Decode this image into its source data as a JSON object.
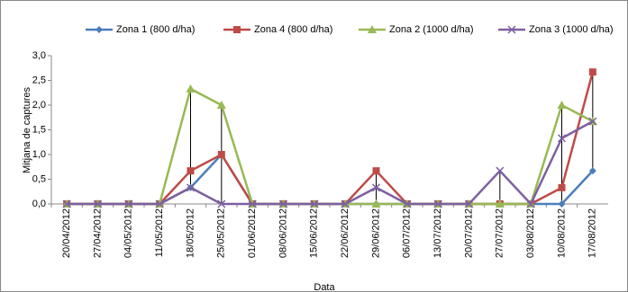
{
  "chart_data": {
    "type": "line",
    "x_label": "Data",
    "y_label": "Mitjana de captures",
    "categories": [
      "20/04/2012",
      "27/04/2012",
      "04/05/2012",
      "11/05/2012",
      "18/05/2012",
      "25/05/2012",
      "01/06/2012",
      "08/06/2012",
      "15/06/2012",
      "22/06/2012",
      "29/06/2012",
      "06/07/2012",
      "13/07/2012",
      "20/07/2012",
      "27/07/2012",
      "03/08/2012",
      "10/08/2012",
      "17/08/2012"
    ],
    "series": [
      {
        "name": "Zona 1 (800 d/ha)",
        "color": "#4a7ebb",
        "marker": "diamond",
        "values": [
          0,
          0,
          0,
          0,
          0.33,
          1.0,
          0,
          0,
          0,
          0,
          0,
          0,
          0,
          0,
          0,
          0,
          0,
          0.67
        ]
      },
      {
        "name": "Zona 4 (800 d/ha)",
        "color": "#be4b48",
        "marker": "square",
        "values": [
          0,
          0,
          0,
          0,
          0.67,
          1.0,
          0,
          0,
          0,
          0,
          0.67,
          0,
          0,
          0,
          0,
          0,
          0.33,
          2.67
        ]
      },
      {
        "name": "Zona 2 (1000 d/ha)",
        "color": "#98b954",
        "marker": "triangle",
        "values": [
          0,
          0,
          0,
          0,
          2.33,
          2.0,
          0,
          0,
          0,
          0,
          0,
          0,
          0,
          0,
          0,
          0,
          2.0,
          1.67
        ]
      },
      {
        "name": "Zona 3 (1000 d/ha)",
        "color": "#7d60a0",
        "marker": "x",
        "values": [
          0,
          0,
          0,
          0,
          0.33,
          0,
          0,
          0,
          0,
          0,
          0.33,
          0,
          0,
          0,
          0.67,
          0,
          1.33,
          1.67
        ]
      }
    ],
    "ylim": [
      0,
      3
    ],
    "yticks": [
      {
        "value": 0,
        "label": "0,0"
      },
      {
        "value": 0.5,
        "label": "0,5"
      },
      {
        "value": 1,
        "label": "1,0"
      },
      {
        "value": 1.5,
        "label": "1,5"
      },
      {
        "value": 2,
        "label": "2,0"
      },
      {
        "value": 2.5,
        "label": "2,5"
      },
      {
        "value": 3,
        "label": "3,0"
      }
    ],
    "high_low_lines": true,
    "grid": false,
    "legend": "top"
  }
}
